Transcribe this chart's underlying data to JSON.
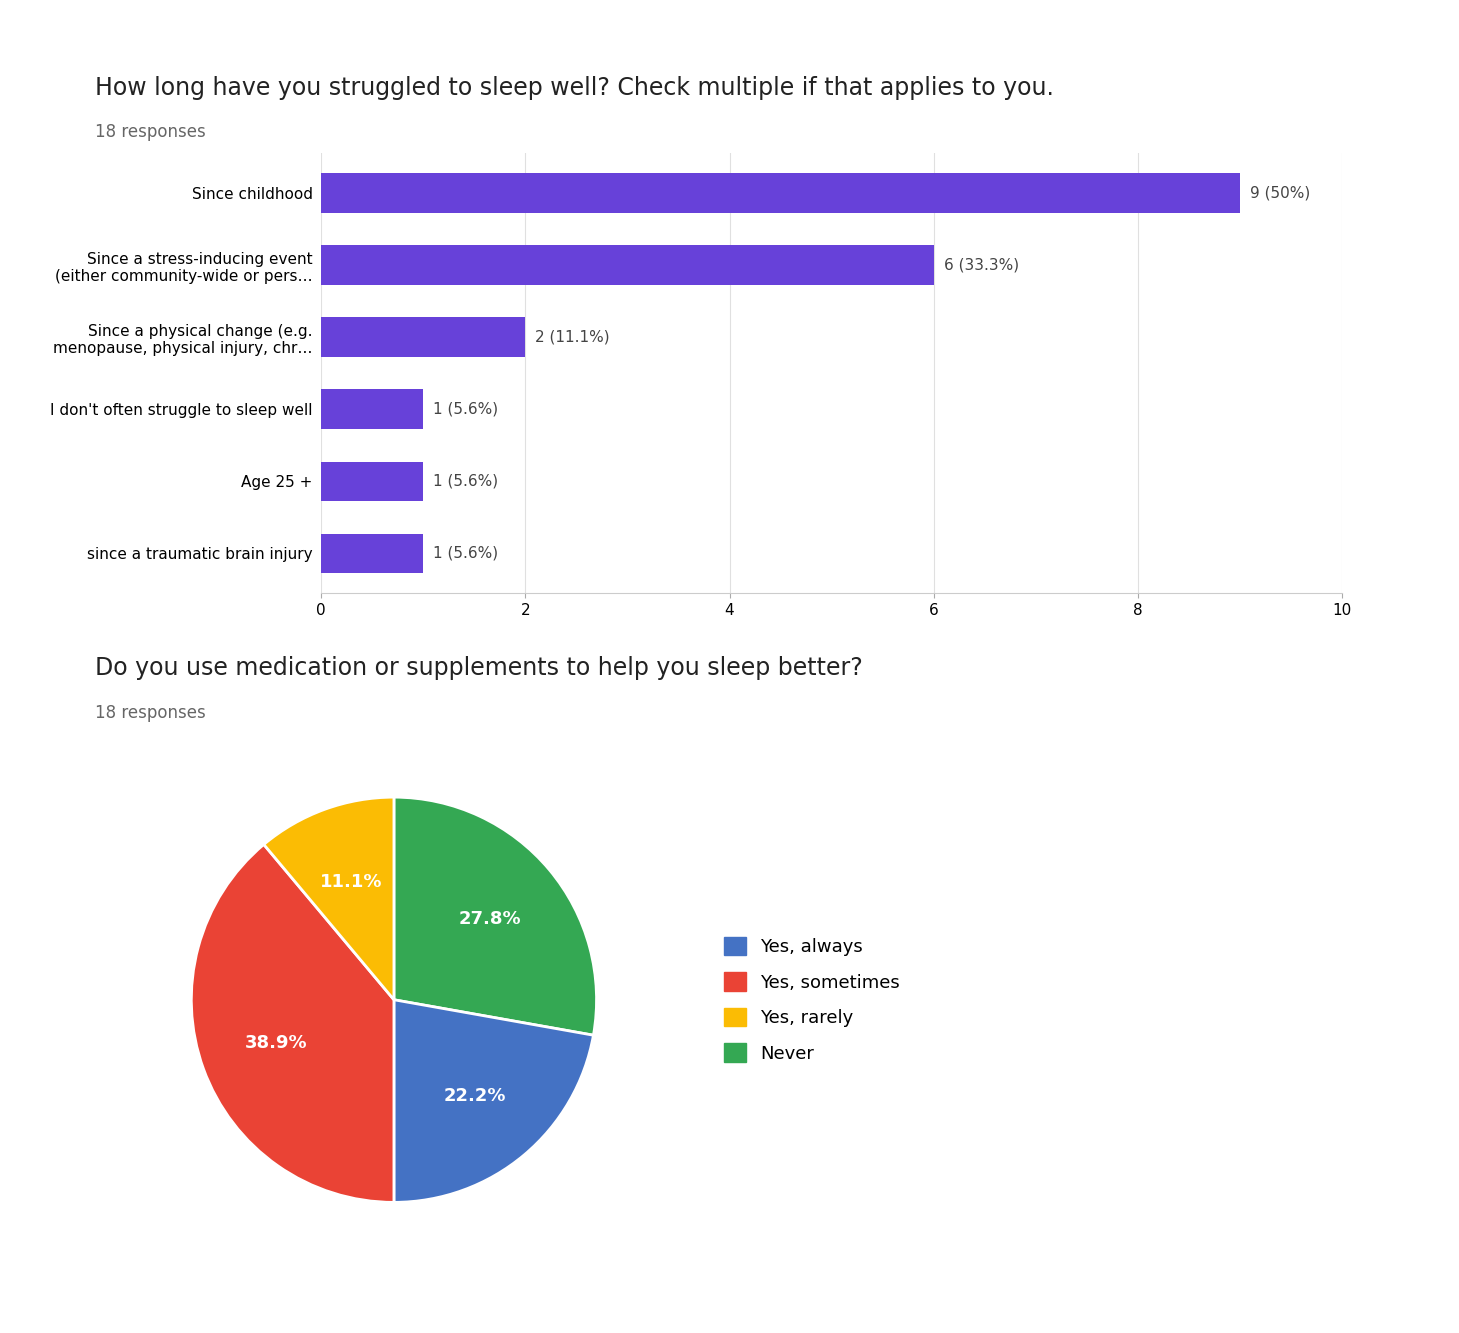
{
  "bar_title": "How long have you struggled to sleep well? Check multiple if that applies to you.",
  "bar_responses": "18 responses",
  "bar_categories": [
    "Since childhood",
    "Since a stress-inducing event\n(either community-wide or pers…",
    "Since a physical change (e.g.\nmenopause, physical injury, chr…",
    "I don't often struggle to sleep well",
    "Age 25 +",
    "since a traumatic brain injury"
  ],
  "bar_values": [
    9,
    6,
    2,
    1,
    1,
    1
  ],
  "bar_labels": [
    "9 (50%)",
    "6 (33.3%)",
    "2 (11.1%)",
    "1 (5.6%)",
    "1 (5.6%)",
    "1 (5.6%)"
  ],
  "bar_color": "#6741d9",
  "bar_xlim": [
    0,
    10
  ],
  "bar_xticks": [
    0,
    2,
    4,
    6,
    8,
    10
  ],
  "pie_title": "Do you use medication or supplements to help you sleep better?",
  "pie_responses": "18 responses",
  "pie_labels": [
    "Yes, always",
    "Yes, sometimes",
    "Yes, rarely",
    "Never"
  ],
  "pie_values": [
    22.2,
    38.9,
    11.1,
    27.8
  ],
  "pie_colors": [
    "#4472c4",
    "#ea4335",
    "#fbbc04",
    "#34a853"
  ],
  "pie_text_labels": [
    "22.2%",
    "38.9%",
    "11.1%",
    "27.8%"
  ],
  "pie_wedge_order": [
    3,
    0,
    1,
    2
  ],
  "background_color": "#ffffff",
  "title_fontsize": 17,
  "subtitle_fontsize": 12,
  "bar_label_fontsize": 11,
  "tick_fontsize": 11,
  "pie_label_fontsize": 13,
  "legend_fontsize": 13
}
